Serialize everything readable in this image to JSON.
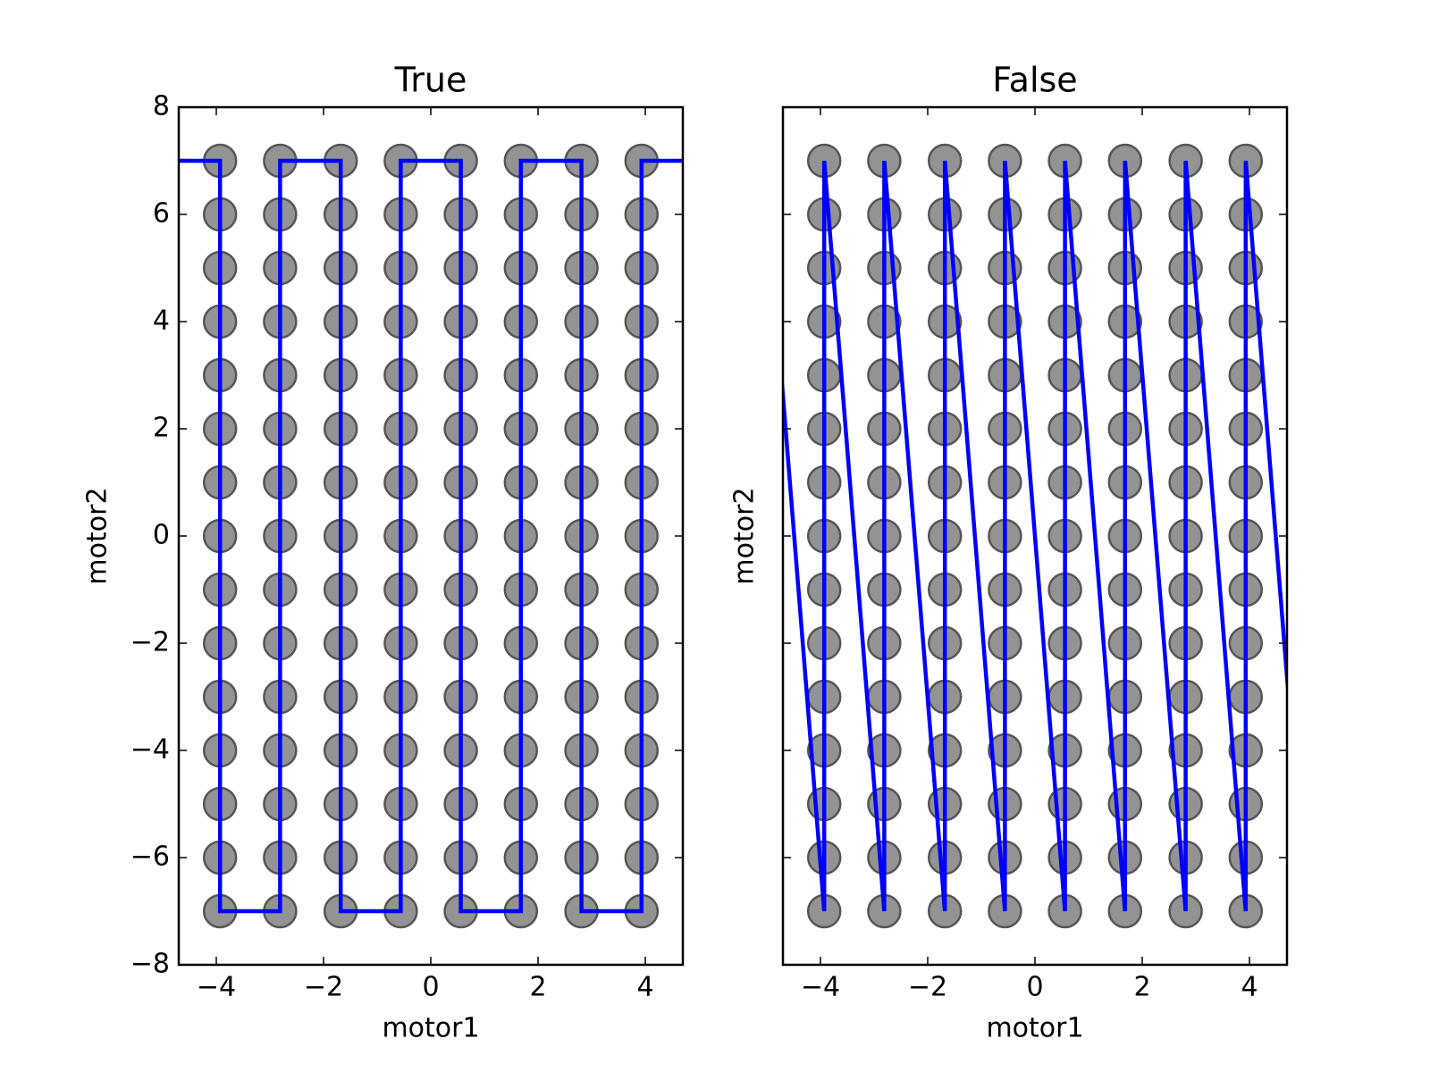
{
  "chart_data": [
    {
      "type": "scatter",
      "title": "True",
      "xlabel": "motor1",
      "ylabel": "motor2",
      "xlim": [
        -4.7,
        4.7
      ],
      "ylim": [
        -8,
        8
      ],
      "xticks": [
        {
          "value": -4,
          "label": "−4"
        },
        {
          "value": -2,
          "label": "−2"
        },
        0,
        2,
        4
      ],
      "yticks": [
        {
          "value": -8,
          "label": "−8"
        },
        {
          "value": -6,
          "label": "−6"
        },
        {
          "value": -4,
          "label": "−4"
        },
        {
          "value": -2,
          "label": "−2"
        },
        0,
        2,
        4,
        6,
        8
      ],
      "show_yticklabels": true,
      "grid_x": [
        -3.93,
        -2.81,
        -1.68,
        -0.56,
        0.56,
        1.68,
        2.81,
        3.93
      ],
      "grid_y": [
        -7,
        -6,
        -5,
        -4,
        -3,
        -2,
        -1,
        0,
        1,
        2,
        3,
        4,
        5,
        6,
        7
      ],
      "marker_color": "#808080",
      "line": {
        "color": "#0000ff",
        "x": [
          -5.05,
          -3.93,
          -3.93,
          -2.81,
          -2.81,
          -1.68,
          -1.68,
          -0.56,
          -0.56,
          0.56,
          0.56,
          1.68,
          1.68,
          2.81,
          2.81,
          3.93,
          3.93,
          5.05
        ],
        "y": [
          7,
          7,
          -7,
          -7,
          7,
          7,
          -7,
          -7,
          7,
          7,
          -7,
          -7,
          7,
          7,
          -7,
          -7,
          7,
          7
        ]
      }
    },
    {
      "type": "scatter",
      "title": "False",
      "xlabel": "motor1",
      "ylabel": "motor2",
      "xlim": [
        -4.7,
        4.7
      ],
      "ylim": [
        -8,
        8
      ],
      "xticks": [
        {
          "value": -4,
          "label": "−4"
        },
        {
          "value": -2,
          "label": "−2"
        },
        0,
        2,
        4
      ],
      "yticks": [
        -8,
        -6,
        -4,
        -2,
        0,
        2,
        4,
        6,
        8
      ],
      "show_yticklabels": false,
      "grid_x": [
        -3.93,
        -2.81,
        -1.68,
        -0.56,
        0.56,
        1.68,
        2.81,
        3.93
      ],
      "grid_y": [
        -7,
        -6,
        -5,
        -4,
        -3,
        -2,
        -1,
        0,
        1,
        2,
        3,
        4,
        5,
        6,
        7
      ],
      "marker_color": "#808080",
      "line": {
        "color": "#0000ff",
        "x": [
          -5.05,
          -3.93,
          -3.93,
          -2.81,
          -2.81,
          -1.68,
          -1.68,
          -0.56,
          -0.56,
          0.56,
          0.56,
          1.68,
          1.68,
          2.81,
          2.81,
          3.93,
          3.93,
          5.05
        ],
        "y": [
          7,
          -7,
          7,
          -7,
          7,
          -7,
          7,
          -7,
          7,
          -7,
          7,
          -7,
          7,
          -7,
          7,
          -7,
          7,
          -7
        ]
      }
    }
  ]
}
